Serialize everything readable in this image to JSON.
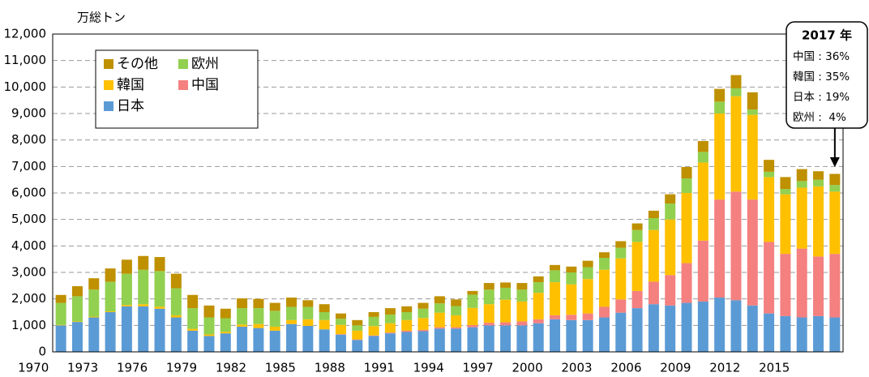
{
  "chart_data": {
    "type": "bar",
    "stacked": true,
    "y_axis_label": "万総トン",
    "categories": [
      "1970",
      null,
      null,
      "1973",
      null,
      null,
      "1976",
      null,
      null,
      "1979",
      null,
      null,
      "1982",
      null,
      null,
      "1985",
      null,
      null,
      "1988",
      null,
      null,
      "1991",
      null,
      null,
      "1994",
      null,
      null,
      "1997",
      null,
      null,
      "2000",
      null,
      null,
      "2003",
      null,
      null,
      "2006",
      null,
      null,
      "2009",
      null,
      null,
      "2012",
      null,
      null,
      "2015",
      null,
      null
    ],
    "series": [
      {
        "name": "日本",
        "color": "#5b9bd5",
        "values": [
          1000,
          1130,
          1300,
          1500,
          1720,
          1720,
          1630,
          1300,
          800,
          600,
          700,
          950,
          900,
          800,
          1050,
          980,
          850,
          650,
          450,
          600,
          700,
          750,
          780,
          880,
          880,
          930,
          1000,
          1000,
          1000,
          1080,
          1230,
          1200,
          1200,
          1300,
          1480,
          1650,
          1800,
          1750,
          1850,
          1900,
          2050,
          1950,
          1750,
          1450,
          1350,
          1300,
          1350,
          1300
        ]
      },
      {
        "name": "中国",
        "color": "#f48080",
        "values": [
          0,
          0,
          0,
          0,
          0,
          0,
          0,
          0,
          0,
          0,
          0,
          0,
          0,
          0,
          0,
          0,
          0,
          20,
          20,
          20,
          30,
          50,
          50,
          50,
          50,
          80,
          100,
          120,
          150,
          150,
          150,
          200,
          250,
          400,
          500,
          650,
          850,
          1150,
          1500,
          2300,
          3700,
          4100,
          4000,
          2700,
          2350,
          2600,
          2250,
          2400
        ]
      },
      {
        "name": "韓国",
        "color": "#ffc000",
        "values": [
          20,
          20,
          30,
          30,
          50,
          80,
          80,
          80,
          70,
          60,
          60,
          80,
          150,
          150,
          150,
          250,
          350,
          350,
          330,
          350,
          350,
          400,
          450,
          550,
          450,
          650,
          700,
          850,
          750,
          1000,
          1250,
          1150,
          1300,
          1400,
          1550,
          1850,
          1950,
          2100,
          2650,
          2950,
          3250,
          3600,
          3200,
          2450,
          2250,
          2300,
          2650,
          2350
        ]
      },
      {
        "name": "欧州",
        "color": "#92d050",
        "values": [
          830,
          950,
          1020,
          1120,
          1180,
          1300,
          1340,
          1020,
          780,
          640,
          510,
          620,
          600,
          600,
          500,
          470,
          300,
          230,
          200,
          350,
          330,
          300,
          350,
          350,
          350,
          500,
          550,
          450,
          450,
          400,
          450,
          450,
          450,
          450,
          400,
          450,
          450,
          600,
          550,
          400,
          450,
          300,
          200,
          200,
          200,
          250,
          250,
          250
        ]
      },
      {
        "name": "その他",
        "color": "#bf9000",
        "values": [
          300,
          380,
          430,
          500,
          530,
          520,
          530,
          550,
          500,
          450,
          360,
          370,
          350,
          300,
          350,
          250,
          300,
          200,
          200,
          180,
          240,
          220,
          220,
          270,
          250,
          140,
          250,
          200,
          250,
          220,
          200,
          220,
          240,
          210,
          250,
          250,
          280,
          350,
          430,
          410,
          480,
          500,
          650,
          450,
          450,
          450,
          320,
          420
        ]
      }
    ],
    "ylim": [
      0,
      12000
    ],
    "yticks": [
      0,
      {
        "value": 1000,
        "label": "1,000"
      },
      {
        "value": 2000,
        "label": "2,000"
      },
      {
        "value": 3000,
        "label": "3,000"
      },
      {
        "value": 4000,
        "label": "4,000"
      },
      {
        "value": 5000,
        "label": "5,000"
      },
      {
        "value": 6000,
        "label": "6,000"
      },
      {
        "value": 7000,
        "label": "7,000"
      },
      {
        "value": 8000,
        "label": "8,000"
      },
      {
        "value": 9000,
        "label": "9,000"
      },
      {
        "value": 10000,
        "label": "10,000"
      },
      {
        "value": 11000,
        "label": "11,000"
      },
      {
        "value": 12000,
        "label": "12,000"
      }
    ],
    "grid": true,
    "legend": "upper left",
    "annotation": {
      "title": "2017 年",
      "lines": [
        "中国 : 36%",
        "韓国 : 35%",
        "日本 : 19%",
        "欧州 :  4%"
      ]
    }
  }
}
